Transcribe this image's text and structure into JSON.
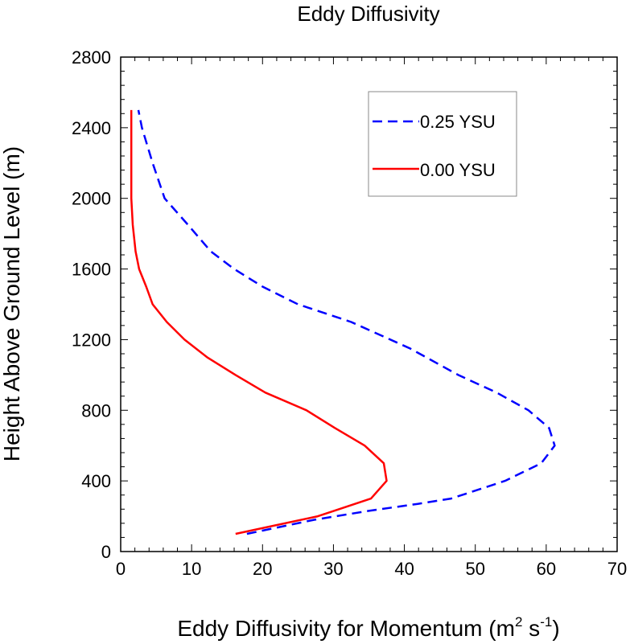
{
  "chart_data": {
    "type": "line",
    "title": "Eddy Diffusivity",
    "xlabel_main": "Eddy Diffusivity for Momentum (m",
    "xlabel_sup1": "2",
    "xlabel_mid": " s",
    "xlabel_sup2": "-1",
    "xlabel_end": ")",
    "ylabel": "Height Above Ground Level (m)",
    "xlim": [
      0,
      70
    ],
    "ylim": [
      0,
      2800
    ],
    "x_ticks": [
      0,
      10,
      20,
      30,
      40,
      50,
      60,
      70
    ],
    "y_ticks": [
      0,
      400,
      800,
      1200,
      1600,
      2000,
      2400,
      2800
    ],
    "legend_position": "top-right",
    "series": [
      {
        "name": "0.25 YSU",
        "color": "#0000ff",
        "dash": "dashed",
        "points": [
          [
            17.8,
            100
          ],
          [
            27.3,
            180
          ],
          [
            34.9,
            230
          ],
          [
            41.9,
            270
          ],
          [
            46.6,
            300
          ],
          [
            54.2,
            400
          ],
          [
            59.3,
            500
          ],
          [
            61.2,
            600
          ],
          [
            60.4,
            700
          ],
          [
            57.5,
            800
          ],
          [
            53.0,
            900
          ],
          [
            47.6,
            1000
          ],
          [
            40.8,
            1150
          ],
          [
            32.5,
            1300
          ],
          [
            25.0,
            1400
          ],
          [
            20.0,
            1500
          ],
          [
            16.0,
            1600
          ],
          [
            12.7,
            1700
          ],
          [
            9.5,
            1850
          ],
          [
            6.2,
            2000
          ],
          [
            4.5,
            2200
          ],
          [
            3.0,
            2400
          ],
          [
            2.5,
            2500
          ]
        ]
      },
      {
        "name": "0.00 YSU",
        "color": "#ff0000",
        "dash": "solid",
        "points": [
          [
            16.2,
            100
          ],
          [
            27.8,
            200
          ],
          [
            35.3,
            300
          ],
          [
            37.5,
            400
          ],
          [
            37.1,
            500
          ],
          [
            34.4,
            600
          ],
          [
            30.2,
            700
          ],
          [
            26.2,
            800
          ],
          [
            20.4,
            900
          ],
          [
            16.2,
            1000
          ],
          [
            12.2,
            1100
          ],
          [
            9.0,
            1200
          ],
          [
            6.5,
            1300
          ],
          [
            4.5,
            1400
          ],
          [
            3.6,
            1500
          ],
          [
            2.6,
            1600
          ],
          [
            2.1,
            1700
          ],
          [
            1.7,
            1850
          ],
          [
            1.5,
            2000
          ],
          [
            1.5,
            2200
          ],
          [
            1.5,
            2500
          ]
        ]
      }
    ]
  }
}
